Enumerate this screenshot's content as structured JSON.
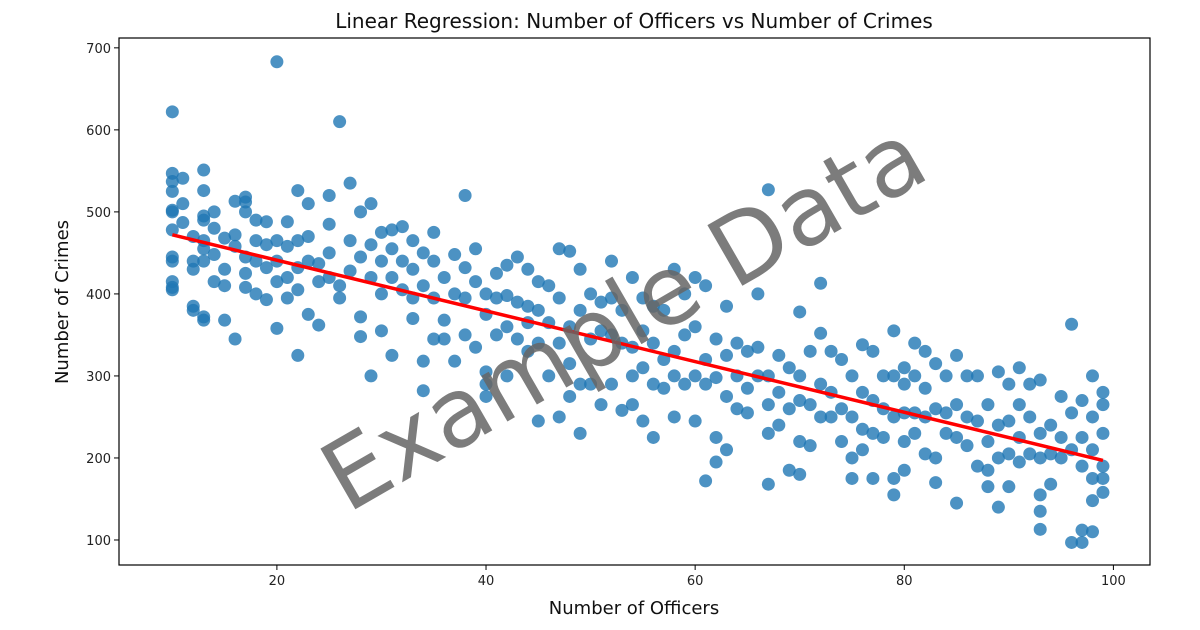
{
  "chart_data": {
    "type": "scatter",
    "title": "Linear Regression: Number of Officers vs Number of Crimes",
    "xlabel": "Number of Officers",
    "ylabel": "Number of Crimes",
    "xlim": [
      4.9,
      103.5
    ],
    "ylim": [
      69.5,
      712
    ],
    "xticks": [
      20,
      40,
      60,
      80,
      100
    ],
    "yticks": [
      100,
      200,
      300,
      400,
      500,
      600,
      700
    ],
    "grid": false,
    "watermark": "Example Data",
    "point_color": "#1f77b4",
    "line_color": "#ff0000",
    "regression_line": {
      "x": [
        10,
        99
      ],
      "y": [
        472,
        197
      ]
    },
    "points": [
      [
        10,
        622
      ],
      [
        10,
        547
      ],
      [
        10,
        537
      ],
      [
        10,
        525
      ],
      [
        10,
        502
      ],
      [
        10,
        500
      ],
      [
        10,
        478
      ],
      [
        10,
        445
      ],
      [
        10,
        440
      ],
      [
        10,
        415
      ],
      [
        10,
        408
      ],
      [
        10,
        405
      ],
      [
        11,
        541
      ],
      [
        11,
        510
      ],
      [
        11,
        487
      ],
      [
        12,
        470
      ],
      [
        12,
        440
      ],
      [
        12,
        430
      ],
      [
        12,
        385
      ],
      [
        12,
        380
      ],
      [
        13,
        551
      ],
      [
        13,
        526
      ],
      [
        13,
        495
      ],
      [
        13,
        490
      ],
      [
        13,
        465
      ],
      [
        13,
        455
      ],
      [
        13,
        440
      ],
      [
        13,
        372
      ],
      [
        13,
        368
      ],
      [
        14,
        500
      ],
      [
        14,
        480
      ],
      [
        14,
        448
      ],
      [
        14,
        415
      ],
      [
        15,
        468
      ],
      [
        15,
        430
      ],
      [
        15,
        410
      ],
      [
        15,
        368
      ],
      [
        16,
        513
      ],
      [
        16,
        472
      ],
      [
        16,
        458
      ],
      [
        16,
        345
      ],
      [
        17,
        518
      ],
      [
        17,
        512
      ],
      [
        17,
        500
      ],
      [
        17,
        445
      ],
      [
        17,
        425
      ],
      [
        17,
        408
      ],
      [
        18,
        490
      ],
      [
        18,
        465
      ],
      [
        18,
        440
      ],
      [
        18,
        400
      ],
      [
        19,
        488
      ],
      [
        19,
        460
      ],
      [
        19,
        432
      ],
      [
        19,
        393
      ],
      [
        20,
        683
      ],
      [
        20,
        465
      ],
      [
        20,
        440
      ],
      [
        20,
        415
      ],
      [
        20,
        358
      ],
      [
        21,
        488
      ],
      [
        21,
        458
      ],
      [
        21,
        420
      ],
      [
        21,
        395
      ],
      [
        22,
        526
      ],
      [
        22,
        465
      ],
      [
        22,
        432
      ],
      [
        22,
        405
      ],
      [
        22,
        325
      ],
      [
        23,
        510
      ],
      [
        23,
        470
      ],
      [
        23,
        440
      ],
      [
        23,
        375
      ],
      [
        24,
        437
      ],
      [
        24,
        415
      ],
      [
        24,
        362
      ],
      [
        25,
        520
      ],
      [
        25,
        485
      ],
      [
        25,
        450
      ],
      [
        25,
        420
      ],
      [
        26,
        610
      ],
      [
        26,
        410
      ],
      [
        26,
        395
      ],
      [
        27,
        535
      ],
      [
        27,
        465
      ],
      [
        27,
        428
      ],
      [
        28,
        500
      ],
      [
        28,
        445
      ],
      [
        28,
        372
      ],
      [
        28,
        348
      ],
      [
        29,
        510
      ],
      [
        29,
        460
      ],
      [
        29,
        420
      ],
      [
        29,
        300
      ],
      [
        30,
        475
      ],
      [
        30,
        440
      ],
      [
        30,
        400
      ],
      [
        30,
        355
      ],
      [
        31,
        478
      ],
      [
        31,
        455
      ],
      [
        31,
        420
      ],
      [
        31,
        325
      ],
      [
        32,
        482
      ],
      [
        32,
        440
      ],
      [
        32,
        405
      ],
      [
        33,
        465
      ],
      [
        33,
        430
      ],
      [
        33,
        395
      ],
      [
        33,
        370
      ],
      [
        34,
        450
      ],
      [
        34,
        410
      ],
      [
        34,
        318
      ],
      [
        34,
        282
      ],
      [
        35,
        475
      ],
      [
        35,
        440
      ],
      [
        35,
        395
      ],
      [
        35,
        345
      ],
      [
        36,
        420
      ],
      [
        36,
        368
      ],
      [
        36,
        345
      ],
      [
        37,
        448
      ],
      [
        37,
        400
      ],
      [
        37,
        318
      ],
      [
        38,
        520
      ],
      [
        38,
        432
      ],
      [
        38,
        395
      ],
      [
        38,
        350
      ],
      [
        39,
        455
      ],
      [
        39,
        415
      ],
      [
        39,
        335
      ],
      [
        40,
        400
      ],
      [
        40,
        375
      ],
      [
        40,
        305
      ],
      [
        40,
        290
      ],
      [
        40,
        275
      ],
      [
        41,
        425
      ],
      [
        41,
        395
      ],
      [
        41,
        350
      ],
      [
        42,
        435
      ],
      [
        42,
        398
      ],
      [
        42,
        360
      ],
      [
        42,
        300
      ],
      [
        43,
        445
      ],
      [
        43,
        390
      ],
      [
        43,
        345
      ],
      [
        44,
        430
      ],
      [
        44,
        385
      ],
      [
        44,
        365
      ],
      [
        44,
        330
      ],
      [
        45,
        415
      ],
      [
        45,
        380
      ],
      [
        45,
        340
      ],
      [
        45,
        245
      ],
      [
        46,
        410
      ],
      [
        46,
        365
      ],
      [
        46,
        300
      ],
      [
        47,
        455
      ],
      [
        47,
        395
      ],
      [
        47,
        340
      ],
      [
        47,
        250
      ],
      [
        48,
        452
      ],
      [
        48,
        360
      ],
      [
        48,
        315
      ],
      [
        48,
        275
      ],
      [
        49,
        430
      ],
      [
        49,
        380
      ],
      [
        49,
        290
      ],
      [
        49,
        230
      ],
      [
        50,
        400
      ],
      [
        50,
        345
      ],
      [
        50,
        290
      ],
      [
        51,
        390
      ],
      [
        51,
        355
      ],
      [
        51,
        265
      ],
      [
        52,
        440
      ],
      [
        52,
        395
      ],
      [
        52,
        350
      ],
      [
        52,
        290
      ],
      [
        53,
        380
      ],
      [
        53,
        340
      ],
      [
        53,
        258
      ],
      [
        54,
        420
      ],
      [
        54,
        335
      ],
      [
        54,
        300
      ],
      [
        54,
        265
      ],
      [
        55,
        395
      ],
      [
        55,
        355
      ],
      [
        55,
        310
      ],
      [
        55,
        245
      ],
      [
        56,
        385
      ],
      [
        56,
        340
      ],
      [
        56,
        290
      ],
      [
        56,
        225
      ],
      [
        57,
        380
      ],
      [
        57,
        320
      ],
      [
        57,
        285
      ],
      [
        58,
        430
      ],
      [
        58,
        330
      ],
      [
        58,
        300
      ],
      [
        58,
        250
      ],
      [
        59,
        400
      ],
      [
        59,
        350
      ],
      [
        59,
        290
      ],
      [
        60,
        420
      ],
      [
        60,
        360
      ],
      [
        60,
        300
      ],
      [
        60,
        245
      ],
      [
        61,
        410
      ],
      [
        61,
        320
      ],
      [
        61,
        290
      ],
      [
        61,
        172
      ],
      [
        62,
        345
      ],
      [
        62,
        298
      ],
      [
        62,
        225
      ],
      [
        62,
        195
      ],
      [
        63,
        385
      ],
      [
        63,
        325
      ],
      [
        63,
        275
      ],
      [
        63,
        210
      ],
      [
        64,
        340
      ],
      [
        64,
        300
      ],
      [
        64,
        260
      ],
      [
        65,
        330
      ],
      [
        65,
        285
      ],
      [
        65,
        255
      ],
      [
        66,
        400
      ],
      [
        66,
        335
      ],
      [
        66,
        300
      ],
      [
        67,
        527
      ],
      [
        67,
        300
      ],
      [
        67,
        265
      ],
      [
        67,
        230
      ],
      [
        67,
        168
      ],
      [
        68,
        325
      ],
      [
        68,
        280
      ],
      [
        68,
        240
      ],
      [
        69,
        310
      ],
      [
        69,
        260
      ],
      [
        69,
        185
      ],
      [
        70,
        378
      ],
      [
        70,
        300
      ],
      [
        70,
        270
      ],
      [
        70,
        220
      ],
      [
        70,
        180
      ],
      [
        71,
        330
      ],
      [
        71,
        265
      ],
      [
        71,
        215
      ],
      [
        72,
        413
      ],
      [
        72,
        352
      ],
      [
        72,
        290
      ],
      [
        72,
        250
      ],
      [
        73,
        330
      ],
      [
        73,
        280
      ],
      [
        73,
        250
      ],
      [
        74,
        320
      ],
      [
        74,
        260
      ],
      [
        74,
        220
      ],
      [
        75,
        300
      ],
      [
        75,
        250
      ],
      [
        75,
        200
      ],
      [
        75,
        175
      ],
      [
        76,
        338
      ],
      [
        76,
        280
      ],
      [
        76,
        235
      ],
      [
        76,
        210
      ],
      [
        77,
        330
      ],
      [
        77,
        270
      ],
      [
        77,
        230
      ],
      [
        77,
        175
      ],
      [
        78,
        300
      ],
      [
        78,
        260
      ],
      [
        78,
        225
      ],
      [
        79,
        355
      ],
      [
        79,
        300
      ],
      [
        79,
        250
      ],
      [
        79,
        175
      ],
      [
        79,
        155
      ],
      [
        80,
        310
      ],
      [
        80,
        290
      ],
      [
        80,
        255
      ],
      [
        80,
        220
      ],
      [
        80,
        185
      ],
      [
        81,
        340
      ],
      [
        81,
        300
      ],
      [
        81,
        255
      ],
      [
        81,
        230
      ],
      [
        82,
        330
      ],
      [
        82,
        285
      ],
      [
        82,
        250
      ],
      [
        82,
        205
      ],
      [
        83,
        315
      ],
      [
        83,
        260
      ],
      [
        83,
        200
      ],
      [
        83,
        170
      ],
      [
        84,
        300
      ],
      [
        84,
        255
      ],
      [
        84,
        230
      ],
      [
        85,
        325
      ],
      [
        85,
        265
      ],
      [
        85,
        225
      ],
      [
        85,
        145
      ],
      [
        86,
        300
      ],
      [
        86,
        250
      ],
      [
        86,
        215
      ],
      [
        87,
        300
      ],
      [
        87,
        245
      ],
      [
        87,
        190
      ],
      [
        88,
        265
      ],
      [
        88,
        220
      ],
      [
        88,
        185
      ],
      [
        88,
        165
      ],
      [
        89,
        305
      ],
      [
        89,
        240
      ],
      [
        89,
        200
      ],
      [
        89,
        140
      ],
      [
        90,
        290
      ],
      [
        90,
        245
      ],
      [
        90,
        205
      ],
      [
        90,
        165
      ],
      [
        91,
        310
      ],
      [
        91,
        265
      ],
      [
        91,
        225
      ],
      [
        91,
        195
      ],
      [
        92,
        290
      ],
      [
        92,
        250
      ],
      [
        92,
        205
      ],
      [
        93,
        295
      ],
      [
        93,
        230
      ],
      [
        93,
        200
      ],
      [
        93,
        155
      ],
      [
        93,
        135
      ],
      [
        93,
        113
      ],
      [
        94,
        240
      ],
      [
        94,
        205
      ],
      [
        94,
        168
      ],
      [
        95,
        275
      ],
      [
        95,
        225
      ],
      [
        95,
        200
      ],
      [
        96,
        363
      ],
      [
        96,
        255
      ],
      [
        96,
        210
      ],
      [
        96,
        97
      ],
      [
        97,
        270
      ],
      [
        97,
        225
      ],
      [
        97,
        190
      ],
      [
        97,
        112
      ],
      [
        97,
        97
      ],
      [
        98,
        300
      ],
      [
        98,
        250
      ],
      [
        98,
        210
      ],
      [
        98,
        175
      ],
      [
        98,
        148
      ],
      [
        98,
        110
      ],
      [
        99,
        280
      ],
      [
        99,
        265
      ],
      [
        99,
        230
      ],
      [
        99,
        190
      ],
      [
        99,
        175
      ],
      [
        99,
        158
      ]
    ]
  }
}
